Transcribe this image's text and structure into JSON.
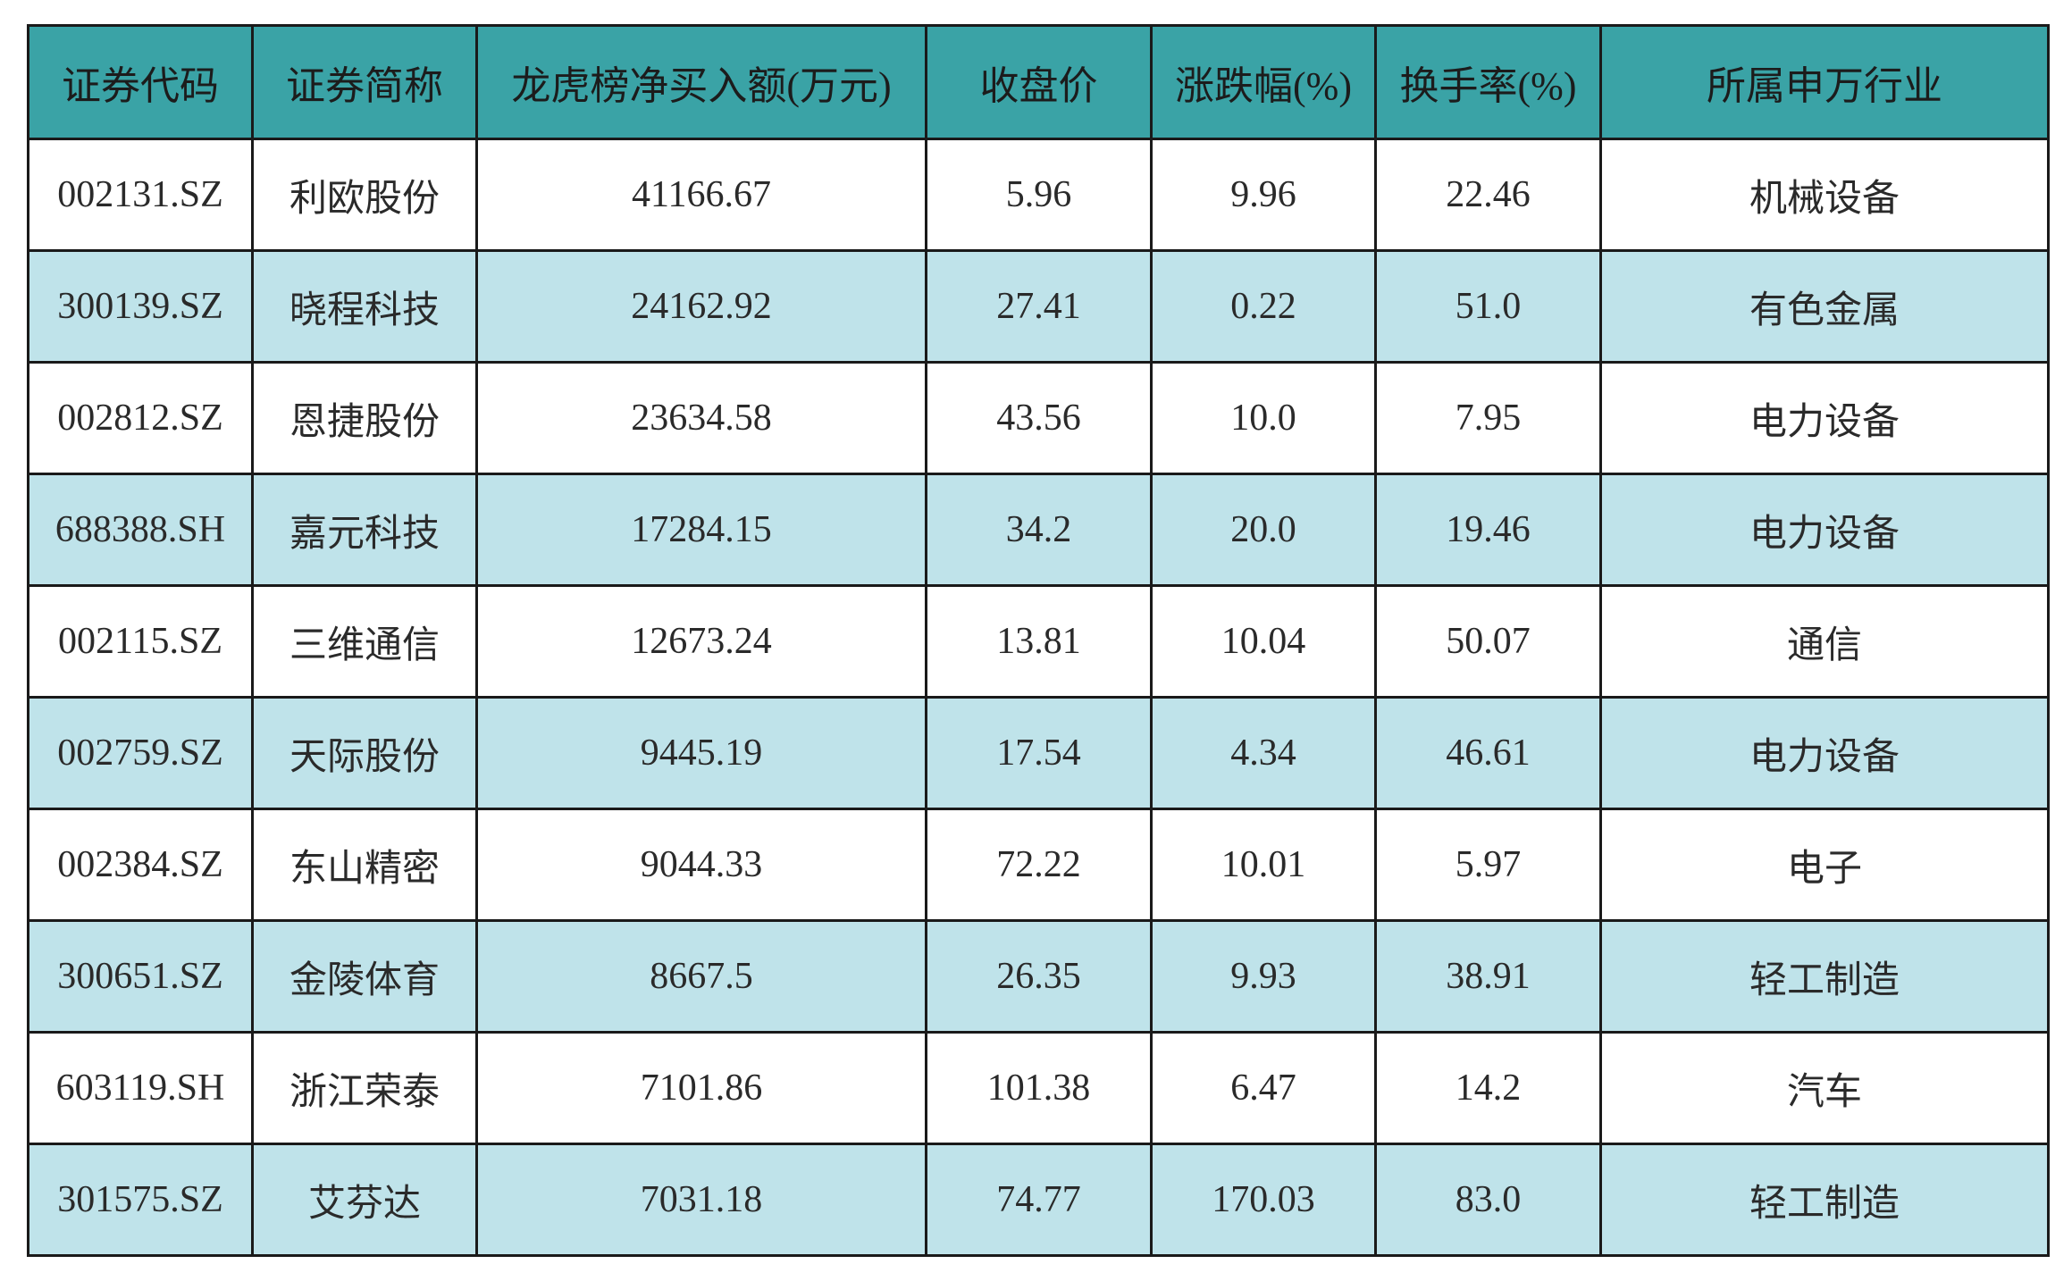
{
  "table": {
    "columns": [
      "证券代码",
      "证券简称",
      "龙虎榜净买入额(万元)",
      "收盘价",
      "涨跌幅(%)",
      "换手率(%)",
      "所属申万行业"
    ],
    "rows": [
      [
        "002131.SZ",
        "利欧股份",
        "41166.67",
        "5.96",
        "9.96",
        "22.46",
        "机械设备"
      ],
      [
        "300139.SZ",
        "晓程科技",
        "24162.92",
        "27.41",
        "0.22",
        "51.0",
        "有色金属"
      ],
      [
        "002812.SZ",
        "恩捷股份",
        "23634.58",
        "43.56",
        "10.0",
        "7.95",
        "电力设备"
      ],
      [
        "688388.SH",
        "嘉元科技",
        "17284.15",
        "34.2",
        "20.0",
        "19.46",
        "电力设备"
      ],
      [
        "002115.SZ",
        "三维通信",
        "12673.24",
        "13.81",
        "10.04",
        "50.07",
        "通信"
      ],
      [
        "002759.SZ",
        "天际股份",
        "9445.19",
        "17.54",
        "4.34",
        "46.61",
        "电力设备"
      ],
      [
        "002384.SZ",
        "东山精密",
        "9044.33",
        "72.22",
        "10.01",
        "5.97",
        "电子"
      ],
      [
        "300651.SZ",
        "金陵体育",
        "8667.5",
        "26.35",
        "9.93",
        "38.91",
        "轻工制造"
      ],
      [
        "603119.SH",
        "浙江荣泰",
        "7101.86",
        "101.38",
        "6.47",
        "14.2",
        "汽车"
      ],
      [
        "301575.SZ",
        "艾芬达",
        "7031.18",
        "74.77",
        "170.03",
        "83.0",
        "轻工制造"
      ]
    ]
  }
}
